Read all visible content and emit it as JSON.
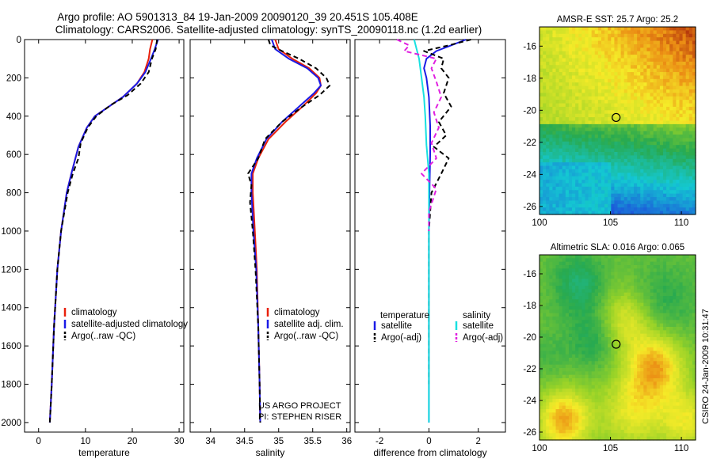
{
  "header": {
    "line1": "Argo profile: AO 5901313_84 19-Jan-2009 20090120_39 20.451S 105.408E",
    "line2": "Climatology: CARS2006. Satellite-adjusted climatology: synTS_20090118.nc (1.2d earlier)"
  },
  "footer": {
    "credit": "CSIRO 24-Jan-2009 10:31:47"
  },
  "chart_data": [
    {
      "id": "temp",
      "type": "line",
      "xlabel": "temperature",
      "ylabel": "",
      "xlim": [
        -3,
        31
      ],
      "ylim": [
        2050,
        0
      ],
      "xticks": [
        0,
        10,
        20,
        30
      ],
      "yticks": [
        0,
        200,
        400,
        600,
        800,
        1000,
        1200,
        1400,
        1600,
        1800,
        2000
      ],
      "series": [
        {
          "name": "climatology",
          "color": "#e8200c",
          "dash": "",
          "x": [
            24.3,
            23.8,
            23.5,
            22.6,
            21.0,
            18.0,
            15.0,
            12.0,
            10.3,
            8.5,
            7.0,
            6.0,
            4.8,
            4.0,
            3.3,
            2.8,
            2.4
          ],
          "y": [
            0,
            50,
            100,
            170,
            230,
            300,
            350,
            400,
            460,
            560,
            700,
            800,
            1000,
            1200,
            1500,
            1800,
            2000
          ]
        },
        {
          "name": "satellite-adjusted climatology",
          "color": "#1a1ae6",
          "dash": "",
          "x": [
            25.5,
            24.8,
            24.0,
            22.8,
            21.0,
            18.0,
            15.0,
            12.0,
            10.3,
            8.5,
            7.0,
            6.0,
            4.8,
            4.0,
            3.3,
            2.8,
            2.4
          ],
          "y": [
            0,
            50,
            100,
            170,
            230,
            300,
            350,
            400,
            460,
            560,
            700,
            800,
            1000,
            1200,
            1500,
            1800,
            2000
          ]
        },
        {
          "name": "Argo(..raw -QC)",
          "color": "#000000",
          "dash": "6,4",
          "x": [
            25.3,
            25.0,
            24.2,
            23.5,
            21.8,
            19.0,
            15.5,
            12.3,
            10.5,
            9.0,
            8.5,
            7.3,
            6.2,
            4.8,
            4.0,
            3.3,
            2.8,
            2.4
          ],
          "y": [
            0,
            50,
            100,
            170,
            230,
            290,
            340,
            400,
            460,
            540,
            620,
            700,
            800,
            1000,
            1200,
            1500,
            1800,
            2000
          ]
        }
      ],
      "legend": [
        "climatology",
        "satellite-adjusted climatology",
        "Argo(..raw -QC)"
      ]
    },
    {
      "id": "sal",
      "type": "line",
      "xlabel": "salinity",
      "ylabel": "",
      "xlim": [
        33.7,
        36.05
      ],
      "ylim": [
        2050,
        0
      ],
      "xticks": [
        34,
        34.5,
        35,
        35.5,
        36
      ],
      "xticklabels": [
        "34",
        "34.5",
        "35",
        "35.5",
        "36"
      ],
      "annotation": [
        "US ARGO PROJECT",
        "PI: STEPHEN RISER"
      ],
      "series": [
        {
          "name": "climatology",
          "color": "#e8200c",
          "dash": "",
          "x": [
            34.95,
            35.0,
            35.2,
            35.45,
            35.6,
            35.62,
            35.55,
            35.35,
            35.1,
            34.85,
            34.7,
            34.62,
            34.62,
            34.65,
            34.68,
            34.7,
            34.72,
            34.73
          ],
          "y": [
            0,
            50,
            100,
            150,
            200,
            240,
            280,
            350,
            430,
            520,
            620,
            700,
            800,
            1000,
            1200,
            1500,
            1800,
            2000
          ]
        },
        {
          "name": "satellite adj. clim.",
          "color": "#1a1ae6",
          "dash": "",
          "x": [
            34.9,
            34.95,
            35.15,
            35.42,
            35.58,
            35.62,
            35.52,
            35.3,
            35.05,
            34.82,
            34.68,
            34.6,
            34.6,
            34.63,
            34.67,
            34.7,
            34.72,
            34.73
          ],
          "y": [
            0,
            50,
            100,
            150,
            200,
            240,
            280,
            350,
            430,
            520,
            620,
            700,
            800,
            1000,
            1200,
            1500,
            1800,
            2000
          ]
        },
        {
          "name": "Argo(..raw -QC)",
          "color": "#000000",
          "dash": "6,4",
          "x": [
            34.85,
            34.88,
            35.05,
            35.3,
            35.55,
            35.7,
            35.75,
            35.6,
            35.35,
            35.05,
            34.8,
            34.7,
            34.55,
            34.6,
            34.58,
            34.62,
            34.66,
            34.7,
            34.72,
            34.73
          ],
          "y": [
            0,
            30,
            60,
            100,
            150,
            200,
            240,
            290,
            350,
            430,
            520,
            620,
            700,
            760,
            850,
            1000,
            1200,
            1500,
            1800,
            2000
          ]
        }
      ],
      "legend": [
        "climatology",
        "satellite adj. clim.",
        "Argo(..raw -QC)"
      ]
    },
    {
      "id": "diff",
      "type": "line",
      "xlabel": "difference from climatology",
      "ylabel": "",
      "xlim": [
        -3,
        3.1
      ],
      "ylim": [
        2050,
        0
      ],
      "xticks": [
        -2,
        0,
        2
      ],
      "legend_headers": [
        "temperature",
        "salinity"
      ],
      "series": [
        {
          "name": "temperature satellite",
          "color": "#1a1ae6",
          "dash": "",
          "x": [
            1.5,
            0.9,
            0.3,
            -0.1,
            -0.2,
            -0.1,
            0,
            0.05,
            0.05,
            0.02,
            0,
            0,
            0,
            0,
            0
          ],
          "y": [
            0,
            30,
            60,
            100,
            150,
            200,
            300,
            450,
            600,
            800,
            1000,
            1200,
            1500,
            1800,
            2000
          ]
        },
        {
          "name": "temperature Argo(-adj)",
          "color": "#000000",
          "dash": "6,4",
          "x": [
            1.7,
            0.8,
            -0.2,
            0.6,
            0.5,
            0.8,
            0.6,
            0.9,
            0.4,
            0.7,
            0.2,
            0.8,
            0.5,
            0.1,
            0,
            0,
            0,
            0
          ],
          "y": [
            0,
            30,
            60,
            100,
            150,
            200,
            280,
            350,
            430,
            500,
            560,
            620,
            700,
            800,
            1000,
            1200,
            1500,
            1800
          ]
        },
        {
          "name": "salinity satellite",
          "color": "#18e0e0",
          "dash": "",
          "x": [
            -0.6,
            -0.4,
            -0.3,
            -0.2,
            -0.15,
            -0.1,
            0,
            0,
            0,
            0,
            0
          ],
          "y": [
            0,
            100,
            200,
            300,
            400,
            550,
            700,
            1000,
            1400,
            1800,
            2000
          ]
        },
        {
          "name": "salinity Argo(-adj)",
          "color": "#e020e0",
          "dash": "6,4",
          "x": [
            -1.3,
            -0.8,
            -1.0,
            0.3,
            0.1,
            0.3,
            0.5,
            0.2,
            0.4,
            0.1,
            0.3,
            -0.3,
            0.3,
            0,
            0
          ],
          "y": [
            0,
            30,
            60,
            100,
            150,
            220,
            300,
            380,
            460,
            540,
            620,
            700,
            780,
            900,
            1000
          ]
        }
      ],
      "legend": [
        "satellite",
        "Argo(-adj)",
        "satellite",
        "Argo(-adj)"
      ]
    },
    {
      "id": "sst",
      "type": "heatmap",
      "title": "AMSR-E SST: 25.7 Argo: 25.2",
      "xlim": [
        100,
        111
      ],
      "ylim": [
        -26.5,
        -14.8
      ],
      "xticks": [
        100,
        105,
        110
      ],
      "yticks": [
        -16,
        -18,
        -20,
        -22,
        -24,
        -26
      ],
      "marker": [
        105.4,
        -20.45
      ]
    },
    {
      "id": "sla",
      "type": "heatmap",
      "title": "Altimetric SLA: 0.016 Argo: 0.065",
      "xlim": [
        100,
        111
      ],
      "ylim": [
        -26.5,
        -14.8
      ],
      "xticks": [
        100,
        105,
        110
      ],
      "yticks": [
        -16,
        -18,
        -20,
        -22,
        -24,
        -26
      ],
      "marker": [
        105.4,
        -20.45
      ]
    }
  ]
}
